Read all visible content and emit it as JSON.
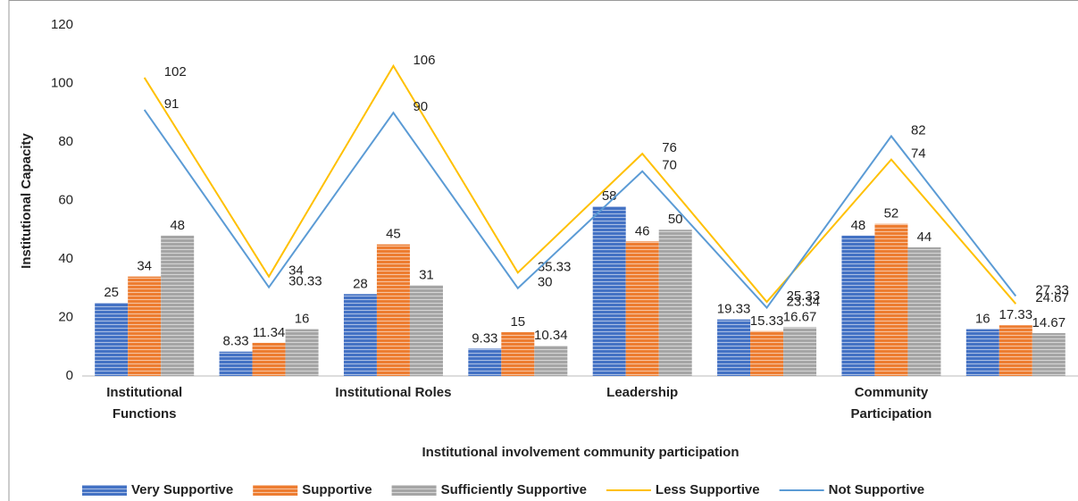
{
  "chart_data": {
    "type": "bar",
    "x_label": "Institutional involvement community participation",
    "y_label": "Institutional Capacity",
    "categories": [
      "Institutional Functions",
      null,
      "Institutional Roles",
      null,
      "Leadership",
      null,
      "Community Participation",
      null
    ],
    "ylim": [
      0,
      120
    ],
    "yticks": [
      0,
      20,
      40,
      60,
      80,
      100,
      120
    ],
    "series": [
      {
        "name": "Very Supportive",
        "type": "bar",
        "color": "#4472c4",
        "values": [
          25,
          8.33,
          28,
          9.33,
          58,
          19.33,
          48,
          16
        ]
      },
      {
        "name": "Supportive",
        "type": "bar",
        "color": "#ed7d31",
        "values": [
          34,
          11.34,
          45,
          15,
          46,
          15.33,
          52,
          17.33
        ]
      },
      {
        "name": "Sufficiently Supportive",
        "type": "bar",
        "color": "#a5a5a5",
        "values": [
          48,
          16,
          31,
          10.34,
          50,
          16.67,
          44,
          14.67
        ]
      },
      {
        "name": "Less Supportive",
        "type": "line",
        "color": "#ffc000",
        "values": [
          102,
          34,
          106,
          35.33,
          76,
          25.33,
          74,
          24.67
        ]
      },
      {
        "name": "Not Supportive",
        "type": "line",
        "color": "#5b9bd5",
        "values": [
          91,
          30.33,
          90,
          30,
          70,
          23.34,
          82,
          27.33
        ]
      }
    ]
  }
}
